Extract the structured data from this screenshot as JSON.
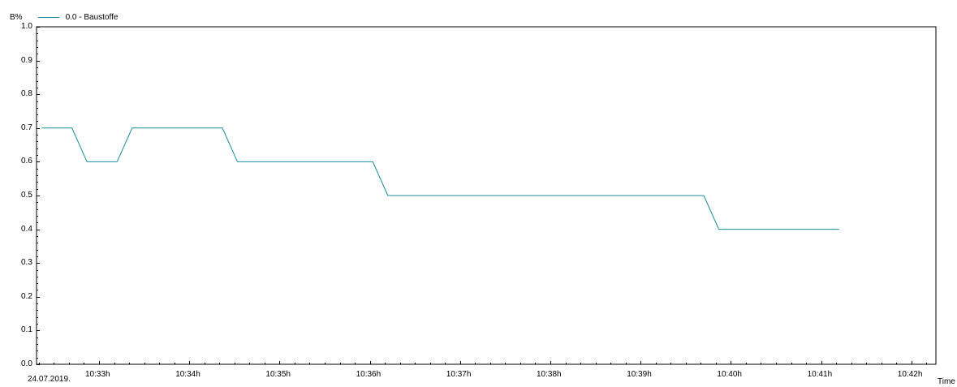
{
  "chart_data": {
    "type": "line",
    "ylabel": "B%",
    "xlabel": "Time",
    "date_label": "24.07.2019.",
    "ylim": [
      0,
      1.0
    ],
    "y_ticks": [
      "0.0",
      "0.1",
      "0.2",
      "0.3",
      "0.4",
      "0.5",
      "0.6",
      "0.7",
      "0.8",
      "0.9",
      "1.0"
    ],
    "x_ticks": [
      "10:33h",
      "10:34h",
      "10:35h",
      "10:36h",
      "10:37h",
      "10:38h",
      "10:39h",
      "10:40h",
      "10:41h",
      "10:42h"
    ],
    "grid": false,
    "legend_position": "top-left",
    "series": [
      {
        "name": "0.0 - Baustoffe",
        "color": "#1a8c99",
        "x": [
          "10:32:22",
          "10:32:42",
          "10:32:52",
          "10:33:12",
          "10:33:22",
          "10:34:22",
          "10:34:32",
          "10:36:02",
          "10:36:12",
          "10:39:42",
          "10:39:52",
          "10:41:12"
        ],
        "y": [
          0.7,
          0.7,
          0.6,
          0.6,
          0.7,
          0.7,
          0.6,
          0.6,
          0.5,
          0.5,
          0.4,
          0.4
        ]
      }
    ]
  }
}
